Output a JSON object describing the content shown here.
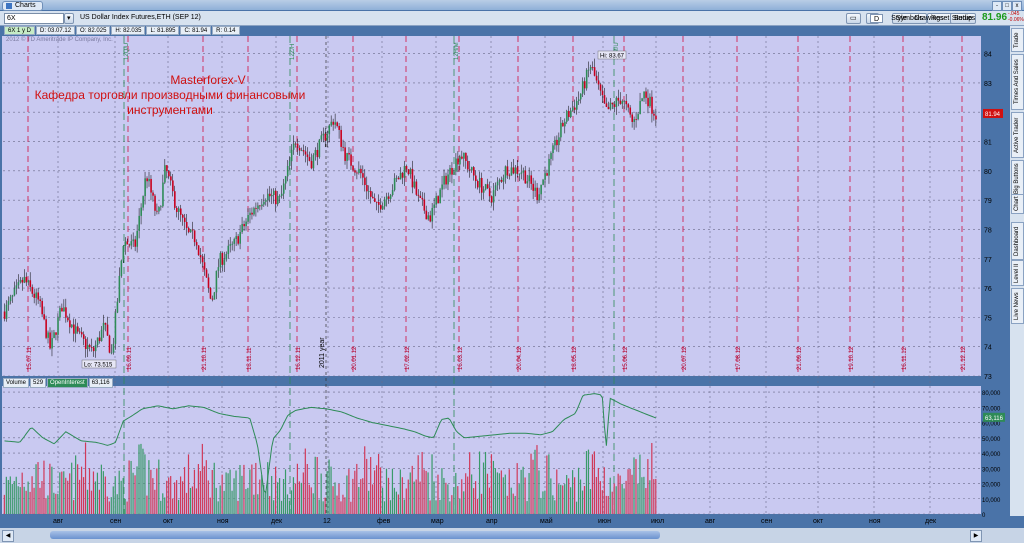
{
  "window": {
    "tab_label": "Charts",
    "close_glyph": "x",
    "minimize_glyph": "-",
    "maximize_glyph": "□"
  },
  "toolbar": {
    "symbol": "6X",
    "description": "US Dollar Index Futures,ETH (SEP 12)",
    "buttons": [
      "Symbols",
      "Reset",
      "Setup"
    ],
    "period": "D",
    "tools": [
      "Style",
      "Drawings",
      "Studies"
    ],
    "last_price": "81.96",
    "change1": "-.045",
    "change2": "-0.06%"
  },
  "info_bar": {
    "symbol": "6X 1 y D",
    "date": "D: 03.07.12",
    "open": "O: 82.025",
    "high": "H: 82.035",
    "low": "L: 81.895",
    "close": "C: 81.94",
    "range": "R: 0.14"
  },
  "copyright": "2012 © TD Ameritrade IP Company, Inc.",
  "annotation": {
    "line1": "Masterforex-V",
    "line2": "Кафедра торговли производными финансовыми",
    "line3": "инструментами"
  },
  "volume_label": {
    "volume": "Volume",
    "volume_value": "529",
    "oi": "OpenInterest",
    "oi_value": "63,116"
  },
  "sidebar_tabs": [
    "Trade",
    "Times And Sales",
    "Active Trader",
    "Big Buttons",
    "Chart",
    "Dashboard",
    "Level II",
    "Live News"
  ],
  "colors": {
    "chart_bg": "#c9c9f1",
    "up": "#2e8b57",
    "down": "#c8001e",
    "grid": "#6a6a8a",
    "oi_line": "#2e8b57"
  },
  "chart_data": {
    "type": "candlestick",
    "price_axis": {
      "ticks": [
        73,
        74,
        75,
        76,
        77,
        78,
        79,
        80,
        81,
        82,
        83,
        84
      ],
      "ylim": [
        73,
        84.6
      ],
      "current_label": "81.94"
    },
    "high_label": "Hi: 83.67",
    "low_label": "Lo: 73.515",
    "expiration_labels": [
      "15.07.11",
      "16.09.11",
      "21.10.11",
      "18.11.11",
      "16.12.11",
      "20.01.12",
      "17.02.12",
      "16.03.12",
      "20.04.12",
      "18.05.12",
      "15.06.12",
      "20.07.12",
      "17.08.12",
      "21.09.12",
      "19.10.12",
      "16.11.12",
      "21.12.12"
    ],
    "rollover_labels": [
      "12Q/U",
      "12Z/H",
      "12H/M",
      "12M/U"
    ],
    "year_marker": "2011 year",
    "month_labels": [
      "авг",
      "сен",
      "окт",
      "ноя",
      "дек",
      "12",
      "фев",
      "мар",
      "апр",
      "май",
      "июн",
      "июл",
      "авг",
      "сен",
      "окт",
      "ноя",
      "дек"
    ],
    "volume_axis": {
      "ticks": [
        "0",
        "10,000",
        "20,000",
        "30,000",
        "40,000",
        "50,000",
        "60,000",
        "70,000",
        "80,000"
      ],
      "ylim": [
        0,
        84000
      ],
      "current_label": "63,116"
    },
    "price_path": [
      [
        0,
        75.2
      ],
      [
        5,
        76.3
      ],
      [
        9,
        75.5
      ],
      [
        12,
        73.9
      ],
      [
        15,
        75.4
      ],
      [
        19,
        74.4
      ],
      [
        23,
        73.8
      ],
      [
        26,
        74.7
      ],
      [
        28,
        73.7
      ],
      [
        31,
        77.6
      ],
      [
        34,
        77.4
      ],
      [
        37,
        79.9
      ],
      [
        40,
        78.3
      ],
      [
        42,
        80.1
      ],
      [
        45,
        78.7
      ],
      [
        48,
        77.8
      ],
      [
        50,
        77.7
      ],
      [
        54,
        75.5
      ],
      [
        56,
        76.9
      ],
      [
        60,
        77.5
      ],
      [
        64,
        78.5
      ],
      [
        68,
        79.2
      ],
      [
        72,
        79.0
      ],
      [
        76,
        81.1
      ],
      [
        80,
        80.3
      ],
      [
        84,
        81.3
      ],
      [
        86,
        81.8
      ],
      [
        89,
        80.5
      ],
      [
        93,
        79.9
      ],
      [
        97,
        78.7
      ],
      [
        101,
        79.4
      ],
      [
        105,
        80.2
      ],
      [
        108,
        79.0
      ],
      [
        111,
        78.4
      ],
      [
        115,
        79.7
      ],
      [
        119,
        80.6
      ],
      [
        123,
        79.7
      ],
      [
        127,
        79.1
      ],
      [
        131,
        80.1
      ],
      [
        135,
        80.0
      ],
      [
        139,
        79.2
      ],
      [
        142,
        80.2
      ],
      [
        146,
        81.7
      ],
      [
        150,
        82.5
      ],
      [
        153,
        83.6
      ],
      [
        157,
        82.0
      ],
      [
        161,
        82.5
      ],
      [
        164,
        81.6
      ],
      [
        167,
        82.7
      ],
      [
        170,
        81.9
      ]
    ],
    "oi_path": [
      [
        0,
        48000
      ],
      [
        4,
        47000
      ],
      [
        7,
        57000
      ],
      [
        10,
        50000
      ],
      [
        13,
        46000
      ],
      [
        16,
        54000
      ],
      [
        20,
        48000
      ],
      [
        24,
        47000
      ],
      [
        27,
        45000
      ],
      [
        29,
        47000
      ],
      [
        31,
        61000
      ],
      [
        33,
        64000
      ],
      [
        36,
        69000
      ],
      [
        40,
        71000
      ],
      [
        44,
        69000
      ],
      [
        48,
        71000
      ],
      [
        52,
        70000
      ],
      [
        56,
        66000
      ],
      [
        60,
        64000
      ],
      [
        64,
        63000
      ],
      [
        66,
        46000
      ],
      [
        68,
        10000
      ],
      [
        70,
        49000
      ],
      [
        72,
        55000
      ],
      [
        74,
        65000
      ],
      [
        76,
        68000
      ],
      [
        80,
        70000
      ],
      [
        84,
        69000
      ],
      [
        88,
        67000
      ],
      [
        92,
        63000
      ],
      [
        96,
        60000
      ],
      [
        100,
        58000
      ],
      [
        104,
        56000
      ],
      [
        107,
        54000
      ],
      [
        110,
        51000
      ],
      [
        112,
        50000
      ],
      [
        114,
        62000
      ],
      [
        116,
        63000
      ],
      [
        118,
        54000
      ],
      [
        120,
        50000
      ],
      [
        124,
        51000
      ],
      [
        128,
        52000
      ],
      [
        132,
        53000
      ],
      [
        136,
        53000
      ],
      [
        140,
        52000
      ],
      [
        143,
        54000
      ],
      [
        146,
        62000
      ],
      [
        149,
        66000
      ],
      [
        151,
        78000
      ],
      [
        154,
        79000
      ],
      [
        156,
        78000
      ],
      [
        157,
        42000
      ],
      [
        158,
        76000
      ],
      [
        161,
        72000
      ],
      [
        165,
        68000
      ],
      [
        170,
        63000
      ]
    ]
  }
}
